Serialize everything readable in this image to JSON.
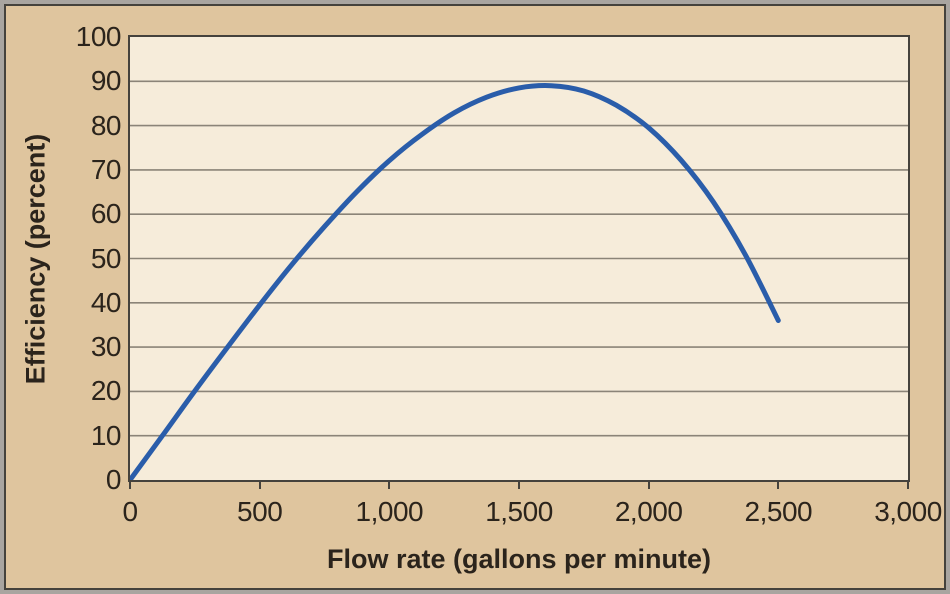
{
  "style": {
    "background_color": "#dfc59e",
    "plot_background_color": "#f6ecda",
    "border_color": "#45423c",
    "outer_border_color": "#a9a5a0",
    "gridline_color": "#8b8478",
    "text_color": "#2b241c",
    "curve_color": "#2a5daa"
  },
  "chart_data": {
    "type": "line",
    "title": "",
    "xlabel": "Flow rate (gallons per minute)",
    "ylabel": "Efficiency (percent)",
    "xlim": [
      0,
      3000
    ],
    "ylim": [
      0,
      100
    ],
    "grid": "horizontal",
    "legend": "none",
    "x_ticks": [
      {
        "value": 0,
        "label": "0"
      },
      {
        "value": 500,
        "label": "500"
      },
      {
        "value": 1000,
        "label": "1,000"
      },
      {
        "value": 1500,
        "label": "1,500"
      },
      {
        "value": 2000,
        "label": "2,000"
      },
      {
        "value": 2500,
        "label": "2,500"
      },
      {
        "value": 3000,
        "label": "3,000"
      }
    ],
    "y_ticks": [
      {
        "value": 0,
        "label": "0"
      },
      {
        "value": 10,
        "label": "10"
      },
      {
        "value": 20,
        "label": "20"
      },
      {
        "value": 30,
        "label": "30"
      },
      {
        "value": 40,
        "label": "40"
      },
      {
        "value": 50,
        "label": "50"
      },
      {
        "value": 60,
        "label": "60"
      },
      {
        "value": 70,
        "label": "70"
      },
      {
        "value": 80,
        "label": "80"
      },
      {
        "value": 90,
        "label": "90"
      },
      {
        "value": 100,
        "label": "100"
      }
    ],
    "series": [
      {
        "name": "pump-efficiency-curve",
        "color": "#2a5daa",
        "line_width": 5,
        "x": [
          0,
          125,
          250,
          375,
          500,
          625,
          750,
          875,
          1000,
          1125,
          1250,
          1375,
          1500,
          1625,
          1750,
          1875,
          2000,
          2125,
          2250,
          2375,
          2500
        ],
        "y": [
          0,
          10.0,
          20.1,
          29.9,
          39.5,
          48.7,
          57.2,
          65.1,
          72.1,
          78.0,
          82.9,
          86.4,
          88.5,
          89.0,
          87.8,
          84.6,
          79.5,
          72.2,
          62.7,
          50.6,
          36.0
        ]
      }
    ]
  }
}
